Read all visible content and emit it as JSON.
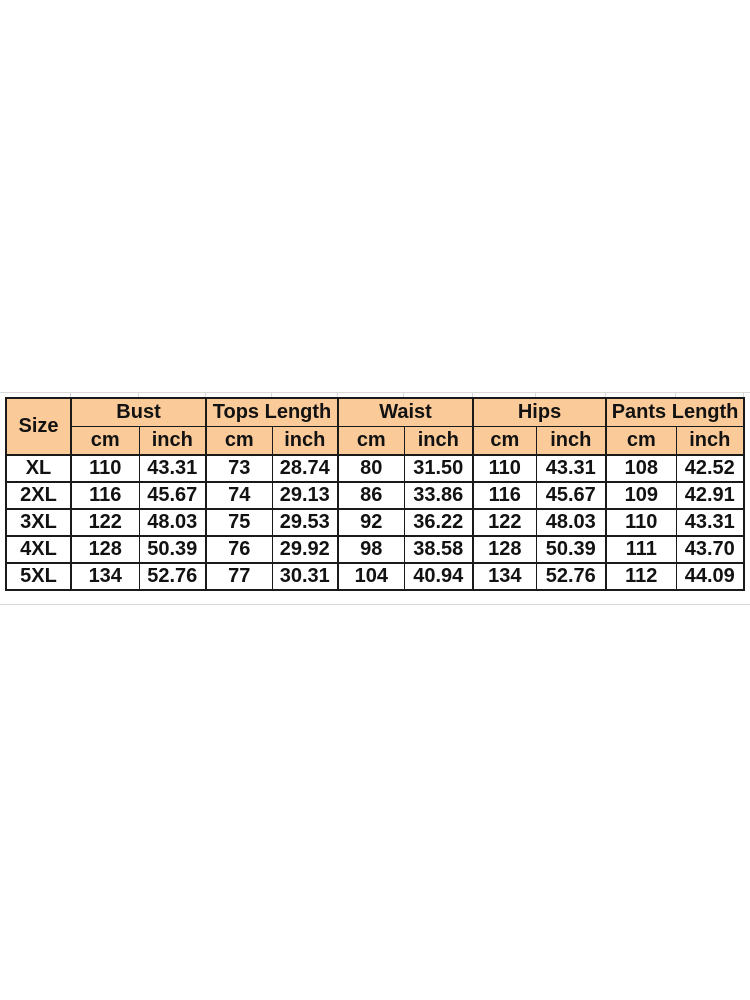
{
  "style": {
    "background": "#ffffff",
    "header_fill": "#FACA98",
    "border_color": "#1a1a1a",
    "text_color": "#121212",
    "gridline_artifact_color": "#d9d9d9"
  },
  "chart_data": {
    "type": "table",
    "corner_label": "Size",
    "groups": [
      "Bust",
      "Tops Length",
      "Waist",
      "Hips",
      "Pants Length"
    ],
    "units": [
      "cm",
      "inch"
    ],
    "rows": [
      {
        "size": "XL",
        "values": [
          "110",
          "43.31",
          "73",
          "28.74",
          "80",
          "31.50",
          "110",
          "43.31",
          "108",
          "42.52"
        ]
      },
      {
        "size": "2XL",
        "values": [
          "116",
          "45.67",
          "74",
          "29.13",
          "86",
          "33.86",
          "116",
          "45.67",
          "109",
          "42.91"
        ]
      },
      {
        "size": "3XL",
        "values": [
          "122",
          "48.03",
          "75",
          "29.53",
          "92",
          "36.22",
          "122",
          "48.03",
          "110",
          "43.31"
        ]
      },
      {
        "size": "4XL",
        "values": [
          "128",
          "50.39",
          "76",
          "29.92",
          "98",
          "38.58",
          "128",
          "50.39",
          "111",
          "43.70"
        ]
      },
      {
        "size": "5XL",
        "values": [
          "134",
          "52.76",
          "77",
          "30.31",
          "104",
          "40.94",
          "134",
          "52.76",
          "112",
          "44.09"
        ]
      }
    ]
  }
}
